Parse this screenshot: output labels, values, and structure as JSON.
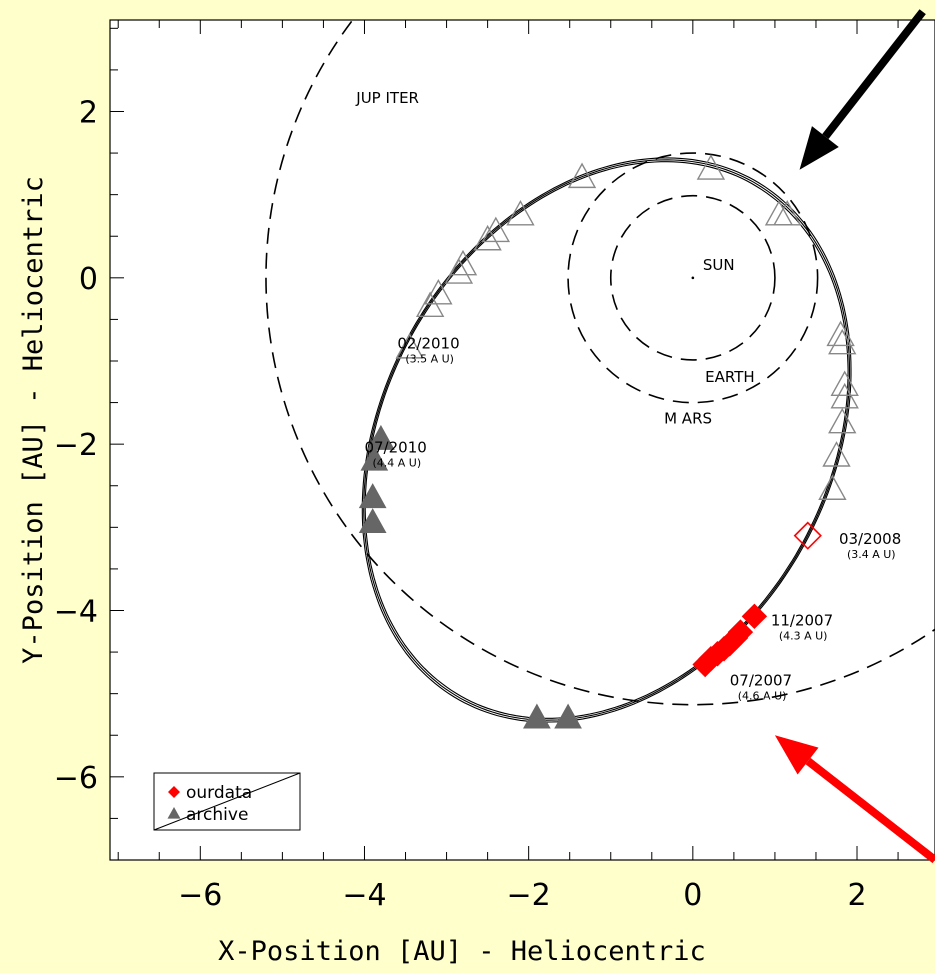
{
  "chart_data": {
    "type": "scatter",
    "xlabel": "X-Position [AU] - Heliocentric",
    "ylabel": "Y-Position [AU] - Heliocentric",
    "xlim": [
      -7.1,
      2.95
    ],
    "ylim": [
      -7.0,
      3.1
    ],
    "x_ticks": [
      -6,
      -4,
      -2,
      0,
      2
    ],
    "y_ticks": [
      -6,
      -4,
      -2,
      0,
      2
    ],
    "x_tick_labels": [
      "−6",
      "−4",
      "−2",
      "0",
      "2"
    ],
    "y_tick_labels": [
      "−6",
      "−4",
      "−2",
      "0",
      "2"
    ],
    "grid": false,
    "legend_position": "bottom-left",
    "colors": {
      "ourdata": "#ff0000",
      "archive": "#666666",
      "archive_open": "#888888",
      "background": "#ffffcc"
    },
    "orbits": [
      {
        "name": "EARTH",
        "radius": 1.0,
        "label": "EARTH",
        "label_at": [
          0.15,
          -1.25
        ]
      },
      {
        "name": "MARS",
        "radius": 1.52,
        "label": "M ARS",
        "label_at": [
          -0.35,
          -1.75
        ]
      },
      {
        "name": "JUPITER",
        "radius": 5.2,
        "label": "JUP ITER",
        "label_at": [
          -4.1,
          2.1
        ]
      }
    ],
    "sun": {
      "x": 0,
      "y": 0,
      "label": "SUN"
    },
    "comet_orbit": {
      "center": [
        -1.05,
        -1.95
      ],
      "semi_major": 3.58,
      "semi_minor": 2.7,
      "rotation_deg": 59,
      "strands": 3
    },
    "series": [
      {
        "name": "ourdata",
        "marker": "diamond",
        "filled": true,
        "color": "#ff0000",
        "points": [
          [
            0.15,
            -4.65
          ],
          [
            0.22,
            -4.58
          ],
          [
            0.3,
            -4.52
          ],
          [
            0.38,
            -4.46
          ],
          [
            0.45,
            -4.4
          ],
          [
            0.52,
            -4.33
          ],
          [
            0.58,
            -4.26
          ],
          [
            0.75,
            -4.07
          ]
        ]
      },
      {
        "name": "ourdata-open",
        "marker": "diamond",
        "filled": false,
        "color": "#ff0000",
        "points": [
          [
            1.4,
            -3.1
          ]
        ]
      },
      {
        "name": "archive",
        "marker": "triangle",
        "filled": true,
        "color": "#666666",
        "points": [
          [
            -3.8,
            -1.95
          ],
          [
            -3.88,
            -2.2
          ],
          [
            -3.9,
            -2.65
          ],
          [
            -3.9,
            -2.95
          ],
          [
            -1.9,
            -5.3
          ],
          [
            -1.52,
            -5.3
          ]
        ]
      },
      {
        "name": "archive-open",
        "marker": "triangle",
        "filled": false,
        "color": "#888888",
        "points": [
          [
            -3.45,
            -0.85
          ],
          [
            -3.2,
            -0.35
          ],
          [
            -3.1,
            -0.2
          ],
          [
            -2.85,
            0.05
          ],
          [
            -2.8,
            0.15
          ],
          [
            -2.5,
            0.45
          ],
          [
            -2.4,
            0.55
          ],
          [
            -2.1,
            0.75
          ],
          [
            -1.35,
            1.2
          ],
          [
            0.22,
            1.3
          ],
          [
            1.05,
            0.75
          ],
          [
            1.15,
            0.75
          ],
          [
            1.8,
            -0.7
          ],
          [
            1.82,
            -0.8
          ],
          [
            1.85,
            -1.3
          ],
          [
            1.85,
            -1.45
          ],
          [
            1.82,
            -1.75
          ],
          [
            1.75,
            -2.15
          ],
          [
            1.7,
            -2.55
          ]
        ]
      }
    ],
    "annotations": [
      {
        "date": "02/2010",
        "dist": "(3.5 A U)",
        "at": [
          -3.6,
          -0.85
        ]
      },
      {
        "date": "07/2010",
        "dist": "(4.4 A U)",
        "at": [
          -4.0,
          -2.1
        ]
      },
      {
        "date": "03/2008",
        "dist": "(3.4 A U)",
        "at": [
          1.78,
          -3.2
        ]
      },
      {
        "date": "11/2007",
        "dist": "(4.3 A U)",
        "at": [
          0.95,
          -4.18
        ]
      },
      {
        "date": "07/2007",
        "dist": "(4.6 A U)",
        "at": [
          0.45,
          -4.9
        ]
      }
    ],
    "arrows": [
      {
        "color": "#000000",
        "from": [
          2.8,
          3.2
        ],
        "to": [
          1.3,
          1.3
        ]
      },
      {
        "color": "#ff0000",
        "from": [
          2.95,
          -7.0
        ],
        "to": [
          1.0,
          -5.5
        ]
      }
    ],
    "legend": [
      {
        "name": "ourdata",
        "label": "ourdata",
        "marker": "diamond",
        "color": "#ff0000"
      },
      {
        "name": "archive",
        "label": "archive",
        "marker": "triangle",
        "color": "#666666"
      }
    ]
  }
}
